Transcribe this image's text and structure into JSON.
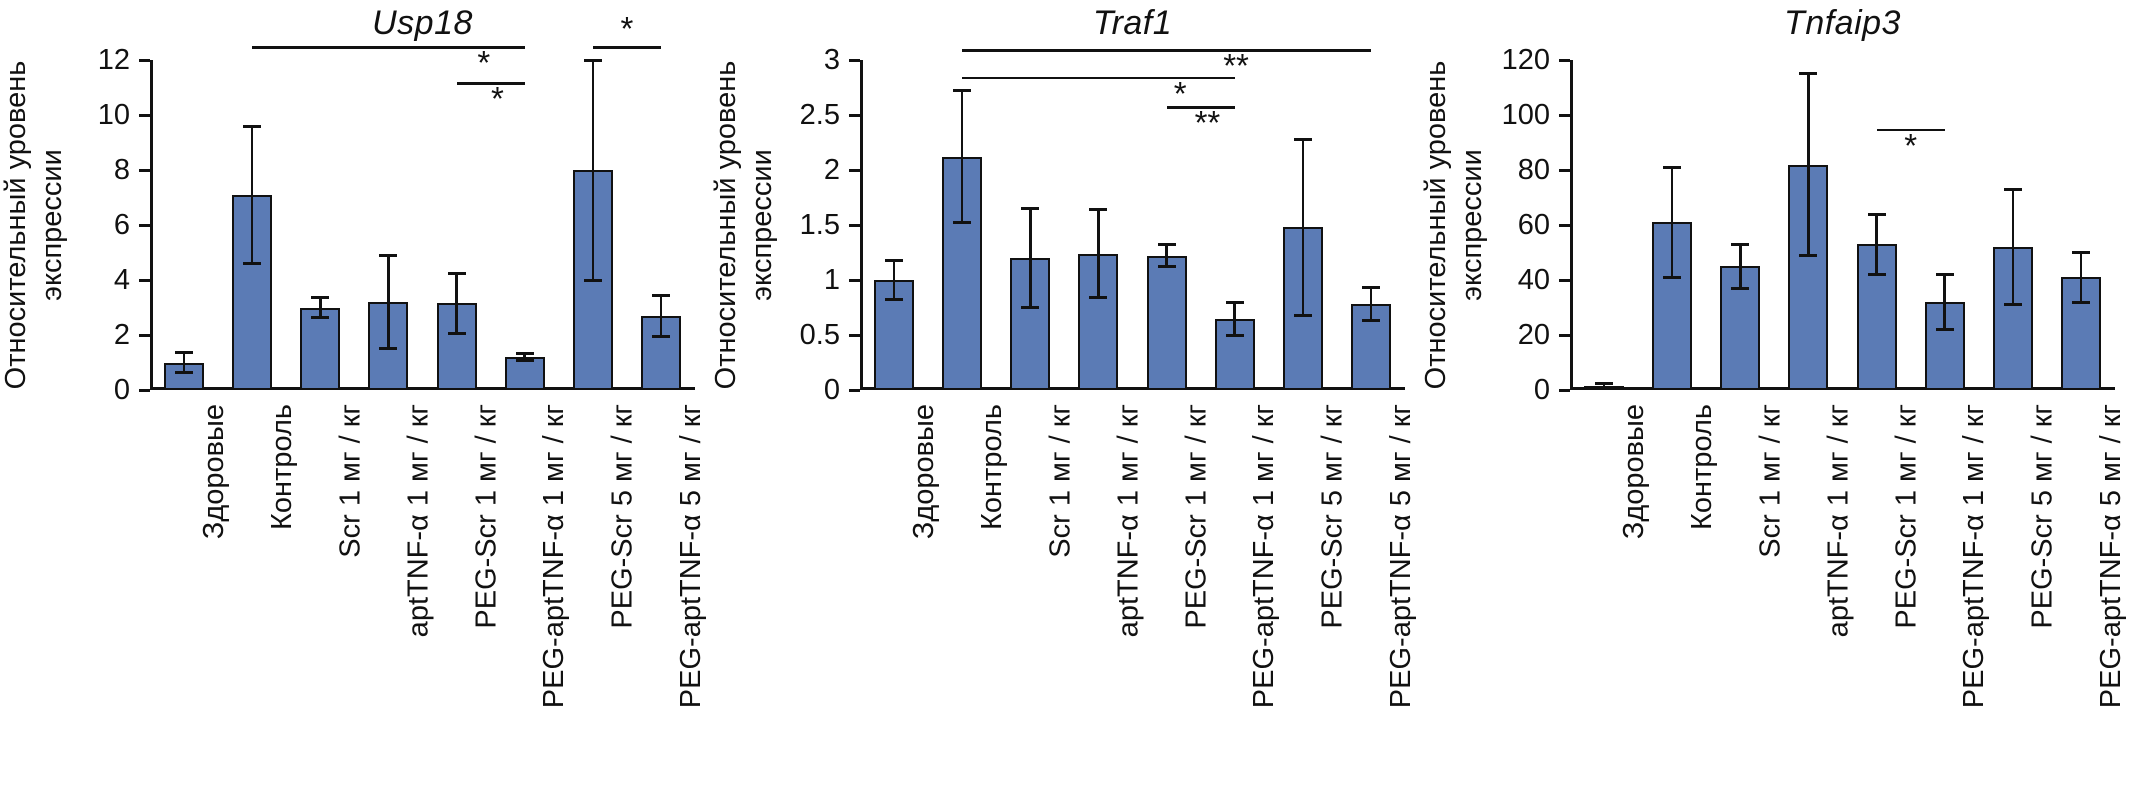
{
  "figure": {
    "background": "#ffffff",
    "bar_fill": "#5b7bb5",
    "bar_border": "#111111",
    "axis_color": "#111111",
    "error_color": "#111111"
  },
  "chart_data": [
    {
      "type": "bar",
      "title": "Usp18",
      "ylabel": "Относительный уровень экспрессии",
      "ylabel_lines": [
        "Относительный уровень",
        "экспрессии"
      ],
      "ylim": [
        0,
        12
      ],
      "yticks": [
        0,
        2,
        4,
        6,
        8,
        10,
        12
      ],
      "ytick_labels": [
        "0",
        "2",
        "4",
        "6",
        "8",
        "10",
        "12"
      ],
      "grid": false,
      "legend": false,
      "categories": [
        "Здоровые",
        "Контроль",
        "Scr 1 мг / кг",
        "aptTNF-α 1 мг / кг",
        "PEG-Scr 1 мг / кг",
        "PEG-aptTNF-α 1 мг / кг",
        "PEG-Scr 5 мг / кг",
        "PEG-aptTNF-α 5 мг / кг"
      ],
      "values": [
        1.0,
        7.1,
        3.0,
        3.2,
        3.15,
        1.2,
        8.0,
        2.7
      ],
      "errors": [
        0.35,
        2.5,
        0.35,
        1.7,
        1.1,
        0.12,
        4.0,
        0.75
      ],
      "significance": [
        {
          "from": 1,
          "to": 5,
          "y": 12.5,
          "label": "*",
          "label_at": 0.85,
          "label_pos": "below"
        },
        {
          "from": 4,
          "to": 5,
          "y": 11.2,
          "label": "*",
          "label_at": 0.6,
          "label_pos": "below"
        },
        {
          "from": 6,
          "to": 7,
          "y": 12.5,
          "label": "*",
          "label_at": 0.5,
          "label_pos": "above"
        }
      ]
    },
    {
      "type": "bar",
      "title": "Traf1",
      "ylabel": "Относительный уровень экспрессии",
      "ylabel_lines": [
        "Относительный уровень",
        "экспрессии"
      ],
      "ylim": [
        0,
        3
      ],
      "yticks": [
        0,
        0.5,
        1,
        1.5,
        2,
        2.5,
        3
      ],
      "ytick_labels": [
        "0",
        "0.5",
        "1",
        "1.5",
        "2",
        "2.5",
        "3"
      ],
      "grid": false,
      "legend": false,
      "categories": [
        "Здоровые",
        "Контроль",
        "Scr 1 мг / кг",
        "aptTNF-α 1 мг / кг",
        "PEG-Scr 1 мг / кг",
        "PEG-aptTNF-α 1 мг / кг",
        "PEG-Scr 5 мг / кг",
        "PEG-aptTNF-α 5 мг / кг"
      ],
      "values": [
        1.0,
        2.12,
        1.2,
        1.24,
        1.22,
        0.65,
        1.48,
        0.78
      ],
      "errors": [
        0.18,
        0.6,
        0.45,
        0.4,
        0.1,
        0.15,
        0.8,
        0.15
      ],
      "significance": [
        {
          "from": 1,
          "to": 7,
          "y": 3.1,
          "label": "**",
          "label_at": 0.67,
          "label_pos": "below"
        },
        {
          "from": 1,
          "to": 5,
          "y": 2.85,
          "label": "*",
          "label_at": 0.8,
          "label_pos": "below"
        },
        {
          "from": 4,
          "to": 5,
          "y": 2.58,
          "label": "**",
          "label_at": 0.6,
          "label_pos": "below"
        }
      ]
    },
    {
      "type": "bar",
      "title": "Tnfaip3",
      "ylabel": "Относительный уровень экспрессии",
      "ylabel_lines": [
        "Относительный уровень",
        "экспрессии"
      ],
      "ylim": [
        0,
        120
      ],
      "yticks": [
        0,
        20,
        40,
        60,
        80,
        100,
        120
      ],
      "ytick_labels": [
        "0",
        "20",
        "40",
        "60",
        "80",
        "100",
        "120"
      ],
      "grid": false,
      "legend": false,
      "categories": [
        "Здоровые",
        "Контроль",
        "Scr 1 мг / кг",
        "aptTNF-α 1 мг / кг",
        "PEG-Scr 1 мг / кг",
        "PEG-aptTNF-α 1 мг / кг",
        "PEG-Scr 5 мг / кг",
        "PEG-aptTNF-α 5 мг / кг"
      ],
      "values": [
        1.5,
        61,
        45,
        82,
        53,
        32,
        52,
        41
      ],
      "errors": [
        1,
        20,
        8,
        33,
        11,
        10,
        21,
        9
      ],
      "significance": [
        {
          "from": 4,
          "to": 5,
          "y": 95,
          "label": "*",
          "label_at": 0.5,
          "label_pos": "below"
        }
      ]
    }
  ]
}
